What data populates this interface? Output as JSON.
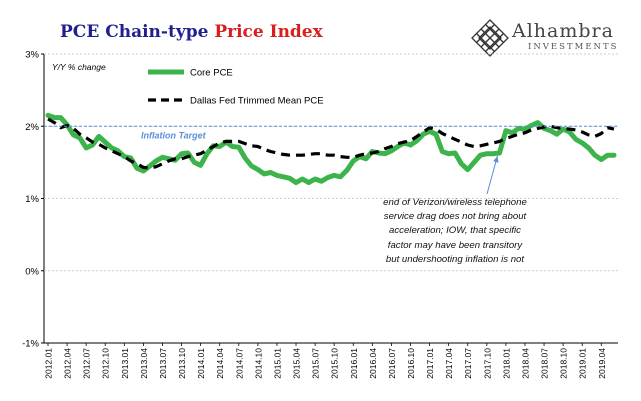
{
  "header": {
    "title_part1": "PCE Chain-type ",
    "title_part2": "Price Index",
    "logo_name": "Alhambra",
    "logo_sub": "INVESTMENTS",
    "title_color_1": "#1f1f8f",
    "title_color_2": "#d81f1f"
  },
  "chart_data": {
    "type": "line",
    "ylabel_note": "Y/Y % change",
    "ylim": [
      -1,
      3
    ],
    "yticks": [
      "-1%",
      "0%",
      "1%",
      "2%",
      "3%"
    ],
    "ytick_values": [
      -1,
      0,
      1,
      2,
      3
    ],
    "x": [
      "2012.01",
      "2012.02",
      "2012.03",
      "2012.04",
      "2012.05",
      "2012.06",
      "2012.07",
      "2012.08",
      "2012.09",
      "2012.10",
      "2012.11",
      "2012.12",
      "2013.01",
      "2013.02",
      "2013.03",
      "2013.04",
      "2013.05",
      "2013.06",
      "2013.07",
      "2013.08",
      "2013.09",
      "2013.10",
      "2013.11",
      "2013.12",
      "2014.01",
      "2014.02",
      "2014.03",
      "2014.04",
      "2014.05",
      "2014.06",
      "2014.07",
      "2014.08",
      "2014.09",
      "2014.10",
      "2014.11",
      "2014.12",
      "2015.01",
      "2015.02",
      "2015.03",
      "2015.04",
      "2015.05",
      "2015.06",
      "2015.07",
      "2015.08",
      "2015.09",
      "2015.10",
      "2015.11",
      "2015.12",
      "2016.01",
      "2016.02",
      "2016.03",
      "2016.04",
      "2016.05",
      "2016.06",
      "2016.07",
      "2016.08",
      "2016.09",
      "2016.10",
      "2016.11",
      "2016.12",
      "2017.01",
      "2017.02",
      "2017.03",
      "2017.04",
      "2017.05",
      "2017.06",
      "2017.07",
      "2017.08",
      "2017.09",
      "2017.10",
      "2017.11",
      "2017.12",
      "2018.01",
      "2018.02",
      "2018.03",
      "2018.04",
      "2018.05",
      "2018.06",
      "2018.07",
      "2018.08",
      "2018.09",
      "2018.10",
      "2018.11",
      "2018.12",
      "2019.01",
      "2019.02",
      "2019.03",
      "2019.04",
      "2019.05",
      "2019.06"
    ],
    "xtick_labels": [
      "2012.01",
      "2012.04",
      "2012.07",
      "2012.10",
      "2013.01",
      "2013.04",
      "2013.07",
      "2013.10",
      "2014.01",
      "2014.04",
      "2014.07",
      "2014.10",
      "2015.01",
      "2015.04",
      "2015.07",
      "2015.10",
      "2016.01",
      "2016.04",
      "2016.07",
      "2016.10",
      "2017.01",
      "2017.04",
      "2017.07",
      "2017.10",
      "2018.01",
      "2018.04",
      "2018.07",
      "2018.10",
      "2019.01",
      "2019.04"
    ],
    "series": [
      {
        "name": "Core PCE",
        "color": "#3cb44b",
        "style": "solid",
        "values": [
          2.15,
          2.12,
          2.12,
          2.02,
          1.88,
          1.84,
          1.7,
          1.74,
          1.86,
          1.78,
          1.7,
          1.66,
          1.58,
          1.56,
          1.42,
          1.38,
          1.45,
          1.52,
          1.57,
          1.55,
          1.53,
          1.62,
          1.63,
          1.5,
          1.46,
          1.62,
          1.73,
          1.72,
          1.78,
          1.72,
          1.71,
          1.56,
          1.45,
          1.4,
          1.34,
          1.36,
          1.32,
          1.3,
          1.28,
          1.22,
          1.27,
          1.22,
          1.27,
          1.24,
          1.29,
          1.32,
          1.3,
          1.39,
          1.52,
          1.58,
          1.55,
          1.65,
          1.63,
          1.62,
          1.66,
          1.72,
          1.77,
          1.74,
          1.8,
          1.89,
          1.93,
          1.89,
          1.65,
          1.62,
          1.63,
          1.48,
          1.4,
          1.5,
          1.6,
          1.62,
          1.62,
          1.63,
          1.94,
          1.91,
          1.97,
          1.96,
          2.01,
          2.05,
          1.97,
          1.94,
          1.89,
          1.96,
          1.92,
          1.82,
          1.77,
          1.7,
          1.6,
          1.54,
          1.6,
          1.6
        ]
      },
      {
        "name": "Dallas Fed Trimmed Mean PCE",
        "color": "#000000",
        "style": "dashed",
        "values": [
          2.1,
          2.05,
          1.98,
          2.01,
          1.97,
          1.89,
          1.84,
          1.78,
          1.75,
          1.7,
          1.66,
          1.62,
          1.58,
          1.52,
          1.48,
          1.43,
          1.42,
          1.44,
          1.48,
          1.52,
          1.55,
          1.55,
          1.58,
          1.6,
          1.62,
          1.67,
          1.72,
          1.77,
          1.79,
          1.79,
          1.79,
          1.76,
          1.73,
          1.72,
          1.68,
          1.65,
          1.63,
          1.61,
          1.6,
          1.6,
          1.6,
          1.61,
          1.62,
          1.62,
          1.6,
          1.6,
          1.58,
          1.57,
          1.57,
          1.6,
          1.62,
          1.63,
          1.65,
          1.69,
          1.72,
          1.76,
          1.78,
          1.8,
          1.86,
          1.92,
          1.98,
          1.96,
          1.9,
          1.86,
          1.82,
          1.78,
          1.74,
          1.72,
          1.73,
          1.75,
          1.77,
          1.79,
          1.83,
          1.86,
          1.89,
          1.91,
          1.95,
          1.97,
          1.99,
          2.0,
          1.98,
          1.97,
          1.96,
          1.95,
          1.92,
          1.88,
          1.86,
          1.9,
          1.98,
          1.96
        ]
      }
    ],
    "reference_line": {
      "label": "Inflation Target",
      "value": 2.0,
      "color": "#5b8ed6"
    },
    "annotation": {
      "lines": [
        "end of Verizon/wireless telephone",
        "service drag does not bring about",
        "acceleration; IOW, that specific",
        "factor may have been transitory",
        "but undershooting inflation is not"
      ],
      "arrow_target_x": "2017.12",
      "arrow_target_y": 1.66
    },
    "legend_placement": "top-left",
    "grid": "horizontal dashed"
  }
}
